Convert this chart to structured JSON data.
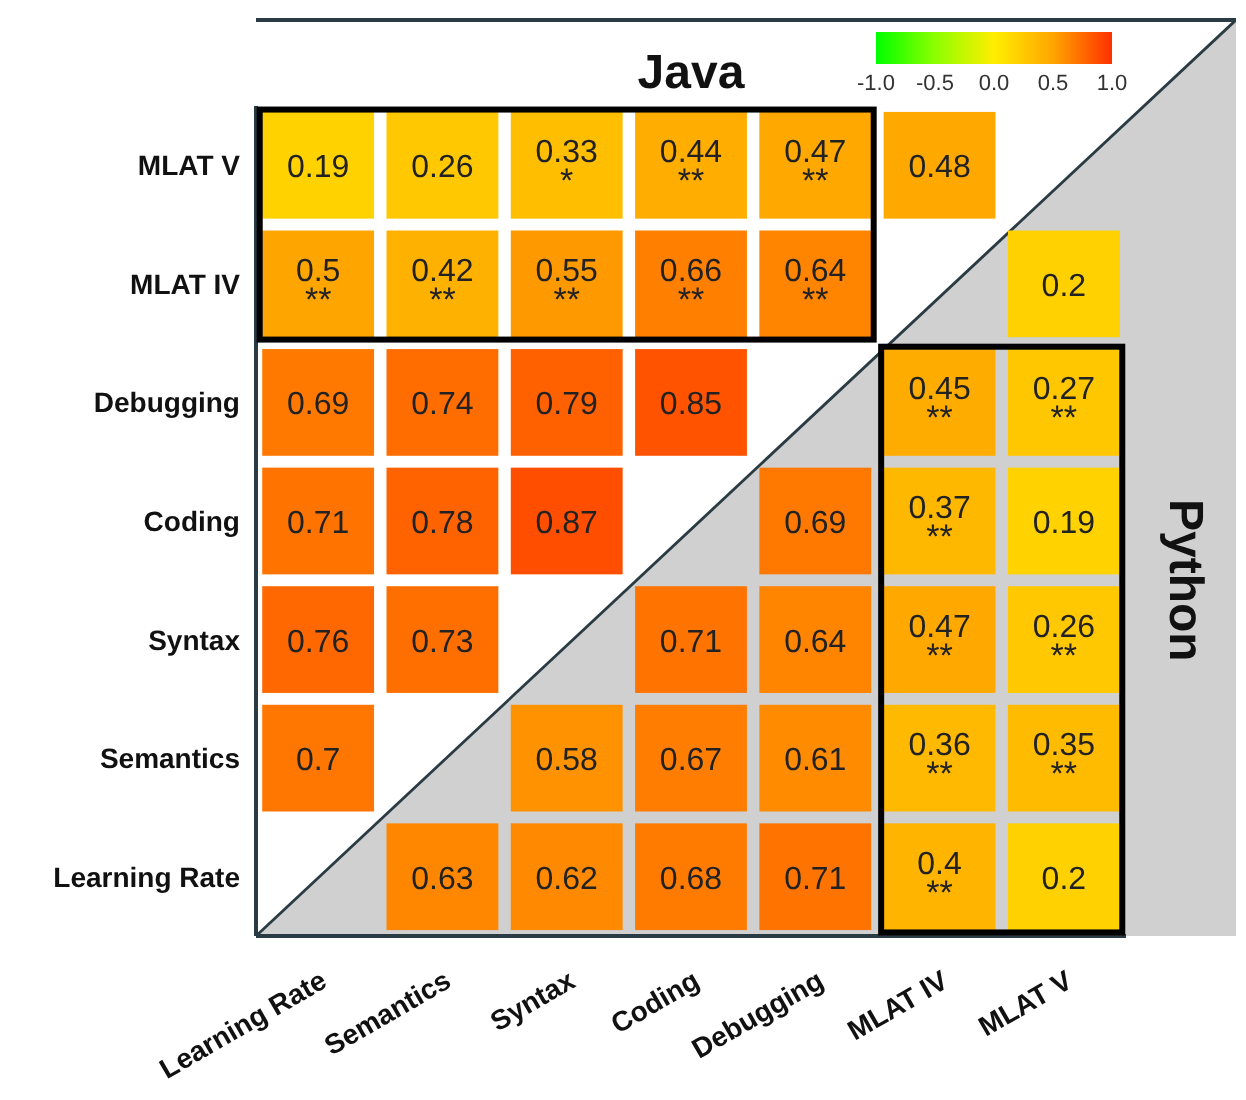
{
  "chart_data": {
    "type": "heatmap",
    "categories": [
      "Learning Rate",
      "Semantics",
      "Syntax",
      "Coding",
      "Debugging",
      "MLAT IV",
      "MLAT V"
    ],
    "y_categories": [
      "MLAT V",
      "MLAT IV",
      "Debugging",
      "Coding",
      "Syntax",
      "Semantics",
      "Learning Rate"
    ],
    "cells": [
      [
        0.19,
        0.26,
        0.33,
        0.44,
        0.47,
        0.48,
        null
      ],
      [
        0.5,
        0.42,
        0.55,
        0.66,
        0.64,
        null,
        0.2
      ],
      [
        0.69,
        0.74,
        0.79,
        0.85,
        null,
        0.45,
        0.27
      ],
      [
        0.71,
        0.78,
        0.87,
        null,
        0.69,
        0.37,
        0.19
      ],
      [
        0.76,
        0.73,
        null,
        0.71,
        0.64,
        0.47,
        0.26
      ],
      [
        0.7,
        null,
        0.58,
        0.67,
        0.61,
        0.36,
        0.35
      ],
      [
        null,
        0.63,
        0.62,
        0.68,
        0.71,
        0.4,
        0.2
      ]
    ],
    "cell_labels": [
      [
        "0.19",
        "0.26",
        "0.33\n*",
        "0.44\n**",
        "0.47\n**",
        "0.48",
        null
      ],
      [
        "0.5\n**",
        "0.42\n**",
        "0.55\n**",
        "0.66\n**",
        "0.64\n**",
        null,
        "0.2"
      ],
      [
        "0.69",
        "0.74",
        "0.79",
        "0.85",
        null,
        "0.45\n**",
        "0.27\n**"
      ],
      [
        "0.71",
        "0.78",
        "0.87",
        null,
        "0.69",
        "0.37\n**",
        "0.19"
      ],
      [
        "0.76",
        "0.73",
        null,
        "0.71",
        "0.64",
        "0.47\n**",
        "0.26\n**"
      ],
      [
        "0.7",
        null,
        "0.58",
        "0.67",
        "0.61",
        "0.36\n**",
        "0.35\n**"
      ],
      [
        null,
        "0.63",
        "0.62",
        "0.68",
        "0.71",
        "0.4\n**",
        "0.2"
      ]
    ],
    "clim": [
      -1,
      1
    ],
    "cticks": [
      {
        "value": -1,
        "label": "-1.0"
      },
      {
        "value": -0.5,
        "label": "-0.5"
      },
      {
        "value": 0,
        "label": "0.0"
      },
      {
        "value": 0.5,
        "label": "0.5"
      },
      {
        "value": 1,
        "label": "1.0"
      }
    ],
    "annotations": [
      "Java",
      "Python"
    ]
  }
}
